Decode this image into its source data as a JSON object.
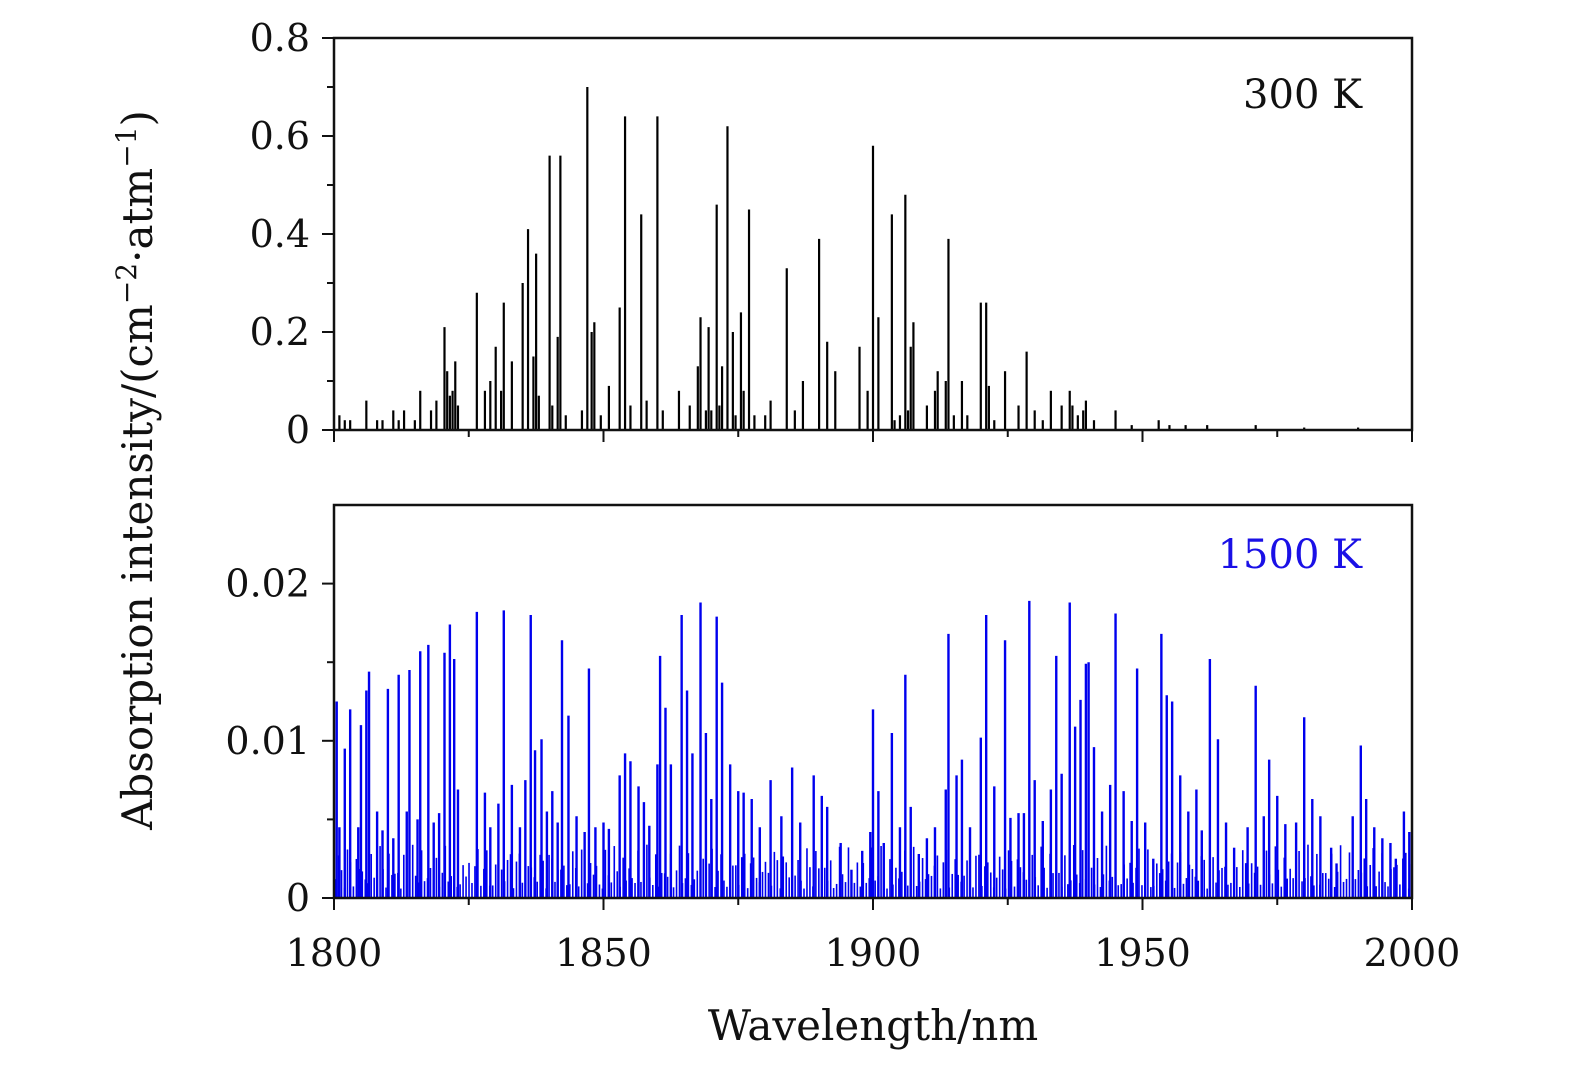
{
  "figure": {
    "ylabel_text": "Absorption intensity/(cm",
    "ylabel_sup1": "−2",
    "ylabel_mid": "·atm",
    "ylabel_sup2": "−1",
    "ylabel_end": ")",
    "xlabel": "Wavelength/nm"
  },
  "chart_data": [
    {
      "type": "bar",
      "label": "300 K",
      "label_color": "#111111",
      "color": "#000000",
      "xlim": [
        1800,
        2000
      ],
      "ylim": [
        0,
        0.8
      ],
      "xticks": [
        "1800",
        "1850",
        "1900",
        "1950",
        "2000"
      ],
      "yticks": [
        "0",
        "0.2",
        "0.4",
        "0.6",
        "0.8"
      ],
      "ytick_values": [
        0,
        0.2,
        0.4,
        0.6,
        0.8
      ],
      "lines": [
        {
          "x": 1801,
          "y": 0.03
        },
        {
          "x": 1802,
          "y": 0.02
        },
        {
          "x": 1803,
          "y": 0.02
        },
        {
          "x": 1806,
          "y": 0.06
        },
        {
          "x": 1808,
          "y": 0.02
        },
        {
          "x": 1809,
          "y": 0.02
        },
        {
          "x": 1811,
          "y": 0.04
        },
        {
          "x": 1812,
          "y": 0.02
        },
        {
          "x": 1813,
          "y": 0.04
        },
        {
          "x": 1815,
          "y": 0.02
        },
        {
          "x": 1816,
          "y": 0.08
        },
        {
          "x": 1818,
          "y": 0.04
        },
        {
          "x": 1819,
          "y": 0.06
        },
        {
          "x": 1820.5,
          "y": 0.21
        },
        {
          "x": 1821,
          "y": 0.12
        },
        {
          "x": 1821.5,
          "y": 0.07
        },
        {
          "x": 1822,
          "y": 0.08
        },
        {
          "x": 1822.5,
          "y": 0.14
        },
        {
          "x": 1823,
          "y": 0.05
        },
        {
          "x": 1826.5,
          "y": 0.28
        },
        {
          "x": 1828,
          "y": 0.08
        },
        {
          "x": 1829,
          "y": 0.1
        },
        {
          "x": 1830,
          "y": 0.17
        },
        {
          "x": 1831,
          "y": 0.08
        },
        {
          "x": 1831.5,
          "y": 0.26
        },
        {
          "x": 1833,
          "y": 0.14
        },
        {
          "x": 1835,
          "y": 0.3
        },
        {
          "x": 1836,
          "y": 0.41
        },
        {
          "x": 1837,
          "y": 0.15
        },
        {
          "x": 1837.5,
          "y": 0.36
        },
        {
          "x": 1838,
          "y": 0.07
        },
        {
          "x": 1840,
          "y": 0.56
        },
        {
          "x": 1840.5,
          "y": 0.05
        },
        {
          "x": 1841.5,
          "y": 0.19
        },
        {
          "x": 1842,
          "y": 0.56
        },
        {
          "x": 1843,
          "y": 0.03
        },
        {
          "x": 1846,
          "y": 0.04
        },
        {
          "x": 1847,
          "y": 0.7
        },
        {
          "x": 1847.8,
          "y": 0.2
        },
        {
          "x": 1848.3,
          "y": 0.22
        },
        {
          "x": 1849.5,
          "y": 0.03
        },
        {
          "x": 1851,
          "y": 0.09
        },
        {
          "x": 1853,
          "y": 0.25
        },
        {
          "x": 1854,
          "y": 0.64
        },
        {
          "x": 1855,
          "y": 0.05
        },
        {
          "x": 1857,
          "y": 0.44
        },
        {
          "x": 1858,
          "y": 0.06
        },
        {
          "x": 1860,
          "y": 0.64
        },
        {
          "x": 1861,
          "y": 0.04
        },
        {
          "x": 1864,
          "y": 0.08
        },
        {
          "x": 1866,
          "y": 0.05
        },
        {
          "x": 1867.5,
          "y": 0.13
        },
        {
          "x": 1868,
          "y": 0.23
        },
        {
          "x": 1869,
          "y": 0.04
        },
        {
          "x": 1869.5,
          "y": 0.21
        },
        {
          "x": 1870,
          "y": 0.04
        },
        {
          "x": 1871,
          "y": 0.46
        },
        {
          "x": 1871.5,
          "y": 0.05
        },
        {
          "x": 1872,
          "y": 0.13
        },
        {
          "x": 1873,
          "y": 0.62
        },
        {
          "x": 1874,
          "y": 0.2
        },
        {
          "x": 1874.5,
          "y": 0.03
        },
        {
          "x": 1875.5,
          "y": 0.24
        },
        {
          "x": 1876,
          "y": 0.08
        },
        {
          "x": 1877,
          "y": 0.45
        },
        {
          "x": 1878,
          "y": 0.03
        },
        {
          "x": 1880,
          "y": 0.03
        },
        {
          "x": 1881,
          "y": 0.06
        },
        {
          "x": 1884,
          "y": 0.33
        },
        {
          "x": 1885.5,
          "y": 0.04
        },
        {
          "x": 1887,
          "y": 0.1
        },
        {
          "x": 1890,
          "y": 0.39
        },
        {
          "x": 1891.5,
          "y": 0.18
        },
        {
          "x": 1893,
          "y": 0.12
        },
        {
          "x": 1897.5,
          "y": 0.17
        },
        {
          "x": 1899,
          "y": 0.08
        },
        {
          "x": 1900,
          "y": 0.58
        },
        {
          "x": 1901,
          "y": 0.23
        },
        {
          "x": 1903.5,
          "y": 0.44
        },
        {
          "x": 1904,
          "y": 0.02
        },
        {
          "x": 1905,
          "y": 0.03
        },
        {
          "x": 1906,
          "y": 0.48
        },
        {
          "x": 1906.5,
          "y": 0.04
        },
        {
          "x": 1907,
          "y": 0.17
        },
        {
          "x": 1907.5,
          "y": 0.22
        },
        {
          "x": 1910,
          "y": 0.05
        },
        {
          "x": 1911.5,
          "y": 0.08
        },
        {
          "x": 1912,
          "y": 0.12
        },
        {
          "x": 1913.5,
          "y": 0.1
        },
        {
          "x": 1914,
          "y": 0.39
        },
        {
          "x": 1915,
          "y": 0.03
        },
        {
          "x": 1916.5,
          "y": 0.1
        },
        {
          "x": 1917.5,
          "y": 0.03
        },
        {
          "x": 1920,
          "y": 0.26
        },
        {
          "x": 1921,
          "y": 0.26
        },
        {
          "x": 1921.5,
          "y": 0.09
        },
        {
          "x": 1922.5,
          "y": 0.02
        },
        {
          "x": 1924.5,
          "y": 0.12
        },
        {
          "x": 1927,
          "y": 0.05
        },
        {
          "x": 1928.5,
          "y": 0.16
        },
        {
          "x": 1930,
          "y": 0.04
        },
        {
          "x": 1931.5,
          "y": 0.02
        },
        {
          "x": 1933,
          "y": 0.08
        },
        {
          "x": 1935,
          "y": 0.05
        },
        {
          "x": 1936.5,
          "y": 0.08
        },
        {
          "x": 1937,
          "y": 0.05
        },
        {
          "x": 1938,
          "y": 0.03
        },
        {
          "x": 1939,
          "y": 0.04
        },
        {
          "x": 1939.5,
          "y": 0.06
        },
        {
          "x": 1941,
          "y": 0.02
        },
        {
          "x": 1945,
          "y": 0.04
        },
        {
          "x": 1948,
          "y": 0.01
        },
        {
          "x": 1953,
          "y": 0.02
        },
        {
          "x": 1955,
          "y": 0.01
        },
        {
          "x": 1958,
          "y": 0.01
        },
        {
          "x": 1962,
          "y": 0.01
        },
        {
          "x": 1971,
          "y": 0.01
        },
        {
          "x": 1980,
          "y": 0.005
        },
        {
          "x": 1990,
          "y": 0.005
        }
      ]
    },
    {
      "type": "bar",
      "label": "1500 K",
      "label_color": "#1a10e6",
      "color": "#0000ee",
      "xlim": [
        1800,
        2000
      ],
      "ylim": [
        0,
        0.025
      ],
      "xticks": [
        "1800",
        "1850",
        "1900",
        "1950",
        "2000"
      ],
      "yticks": [
        "0",
        "0.01",
        "0.02"
      ],
      "ytick_values": [
        0,
        0.01,
        0.02
      ],
      "xlabel": "Wavelength/nm",
      "lines": [
        {
          "x": 1800.5,
          "y": 0.0125
        },
        {
          "x": 1801,
          "y": 0.0045
        },
        {
          "x": 1802,
          "y": 0.0095
        },
        {
          "x": 1803,
          "y": 0.012
        },
        {
          "x": 1804.5,
          "y": 0.0045
        },
        {
          "x": 1805,
          "y": 0.011
        },
        {
          "x": 1806,
          "y": 0.0132
        },
        {
          "x": 1806.5,
          "y": 0.0144
        },
        {
          "x": 1808,
          "y": 0.0055
        },
        {
          "x": 1809,
          "y": 0.0043
        },
        {
          "x": 1810,
          "y": 0.0133
        },
        {
          "x": 1811,
          "y": 0.0038
        },
        {
          "x": 1812,
          "y": 0.0142
        },
        {
          "x": 1813.5,
          "y": 0.0055
        },
        {
          "x": 1814,
          "y": 0.0145
        },
        {
          "x": 1815.5,
          "y": 0.005
        },
        {
          "x": 1816,
          "y": 0.0157
        },
        {
          "x": 1817.5,
          "y": 0.0161
        },
        {
          "x": 1818.5,
          "y": 0.0048
        },
        {
          "x": 1819.5,
          "y": 0.0054
        },
        {
          "x": 1820.5,
          "y": 0.0156
        },
        {
          "x": 1821.5,
          "y": 0.0174
        },
        {
          "x": 1822.3,
          "y": 0.0152
        },
        {
          "x": 1823,
          "y": 0.0069
        },
        {
          "x": 1826.5,
          "y": 0.0182
        },
        {
          "x": 1828,
          "y": 0.0067
        },
        {
          "x": 1829,
          "y": 0.0045
        },
        {
          "x": 1830.5,
          "y": 0.006
        },
        {
          "x": 1831.5,
          "y": 0.0183
        },
        {
          "x": 1833,
          "y": 0.0072
        },
        {
          "x": 1834.5,
          "y": 0.0045
        },
        {
          "x": 1835.5,
          "y": 0.0075
        },
        {
          "x": 1836.5,
          "y": 0.018
        },
        {
          "x": 1837.3,
          "y": 0.0094
        },
        {
          "x": 1838.5,
          "y": 0.0101
        },
        {
          "x": 1839.5,
          "y": 0.0055
        },
        {
          "x": 1840.5,
          "y": 0.0068
        },
        {
          "x": 1841.5,
          "y": 0.0048
        },
        {
          "x": 1842.3,
          "y": 0.0164
        },
        {
          "x": 1843.5,
          "y": 0.0116
        },
        {
          "x": 1845,
          "y": 0.0052
        },
        {
          "x": 1846.5,
          "y": 0.0042
        },
        {
          "x": 1847.3,
          "y": 0.0146
        },
        {
          "x": 1848.5,
          "y": 0.0045
        },
        {
          "x": 1850,
          "y": 0.0048
        },
        {
          "x": 1851,
          "y": 0.0044
        },
        {
          "x": 1853,
          "y": 0.0078
        },
        {
          "x": 1854,
          "y": 0.0092
        },
        {
          "x": 1855,
          "y": 0.0087
        },
        {
          "x": 1856.5,
          "y": 0.0071
        },
        {
          "x": 1857.5,
          "y": 0.0061
        },
        {
          "x": 1858.5,
          "y": 0.0046
        },
        {
          "x": 1860,
          "y": 0.0085
        },
        {
          "x": 1860.5,
          "y": 0.0154
        },
        {
          "x": 1861.5,
          "y": 0.0121
        },
        {
          "x": 1862.5,
          "y": 0.0085
        },
        {
          "x": 1864.5,
          "y": 0.018
        },
        {
          "x": 1865.5,
          "y": 0.0132
        },
        {
          "x": 1866.5,
          "y": 0.0092
        },
        {
          "x": 1868,
          "y": 0.0188
        },
        {
          "x": 1869,
          "y": 0.0105
        },
        {
          "x": 1870,
          "y": 0.0063
        },
        {
          "x": 1871,
          "y": 0.0179
        },
        {
          "x": 1872,
          "y": 0.0137
        },
        {
          "x": 1873.5,
          "y": 0.0085
        },
        {
          "x": 1875,
          "y": 0.0068
        },
        {
          "x": 1876,
          "y": 0.0067
        },
        {
          "x": 1877.5,
          "y": 0.0063
        },
        {
          "x": 1879,
          "y": 0.0045
        },
        {
          "x": 1881,
          "y": 0.0075
        },
        {
          "x": 1883,
          "y": 0.0052
        },
        {
          "x": 1885,
          "y": 0.0083
        },
        {
          "x": 1886.5,
          "y": 0.0048
        },
        {
          "x": 1889,
          "y": 0.0078
        },
        {
          "x": 1890.5,
          "y": 0.0065
        },
        {
          "x": 1891.5,
          "y": 0.0058
        },
        {
          "x": 1894,
          "y": 0.0035
        },
        {
          "x": 1896,
          "y": 0.0018
        },
        {
          "x": 1898,
          "y": 0.003
        },
        {
          "x": 1899.5,
          "y": 0.0042
        },
        {
          "x": 1900,
          "y": 0.012
        },
        {
          "x": 1901,
          "y": 0.0068
        },
        {
          "x": 1902,
          "y": 0.0035
        },
        {
          "x": 1903.5,
          "y": 0.0105
        },
        {
          "x": 1905,
          "y": 0.0045
        },
        {
          "x": 1906,
          "y": 0.0142
        },
        {
          "x": 1907,
          "y": 0.0058
        },
        {
          "x": 1908.5,
          "y": 0.0028
        },
        {
          "x": 1910,
          "y": 0.0038
        },
        {
          "x": 1911.5,
          "y": 0.0045
        },
        {
          "x": 1913.5,
          "y": 0.0069
        },
        {
          "x": 1914,
          "y": 0.0168
        },
        {
          "x": 1915.5,
          "y": 0.0078
        },
        {
          "x": 1916.5,
          "y": 0.0088
        },
        {
          "x": 1918,
          "y": 0.0045
        },
        {
          "x": 1920,
          "y": 0.0102
        },
        {
          "x": 1921,
          "y": 0.018
        },
        {
          "x": 1922.5,
          "y": 0.0071
        },
        {
          "x": 1924.5,
          "y": 0.0164
        },
        {
          "x": 1925.5,
          "y": 0.0051
        },
        {
          "x": 1927,
          "y": 0.0054
        },
        {
          "x": 1928,
          "y": 0.0054
        },
        {
          "x": 1929,
          "y": 0.0189
        },
        {
          "x": 1930,
          "y": 0.0075
        },
        {
          "x": 1931.5,
          "y": 0.0049
        },
        {
          "x": 1933,
          "y": 0.0069
        },
        {
          "x": 1934,
          "y": 0.0154
        },
        {
          "x": 1935,
          "y": 0.0079
        },
        {
          "x": 1936.5,
          "y": 0.0188
        },
        {
          "x": 1937.5,
          "y": 0.0109
        },
        {
          "x": 1938.5,
          "y": 0.0126
        },
        {
          "x": 1939.5,
          "y": 0.0149
        },
        {
          "x": 1940,
          "y": 0.015
        },
        {
          "x": 1941,
          "y": 0.0096
        },
        {
          "x": 1942.5,
          "y": 0.0055
        },
        {
          "x": 1944,
          "y": 0.0072
        },
        {
          "x": 1945,
          "y": 0.0181
        },
        {
          "x": 1946.5,
          "y": 0.0068
        },
        {
          "x": 1948,
          "y": 0.0049
        },
        {
          "x": 1949,
          "y": 0.0146
        },
        {
          "x": 1950.5,
          "y": 0.0048
        },
        {
          "x": 1952,
          "y": 0.0025
        },
        {
          "x": 1953.5,
          "y": 0.0168
        },
        {
          "x": 1954.5,
          "y": 0.0129
        },
        {
          "x": 1955.5,
          "y": 0.0125
        },
        {
          "x": 1957,
          "y": 0.0078
        },
        {
          "x": 1958.5,
          "y": 0.0055
        },
        {
          "x": 1960,
          "y": 0.0069
        },
        {
          "x": 1961,
          "y": 0.0043
        },
        {
          "x": 1962.5,
          "y": 0.0152
        },
        {
          "x": 1964,
          "y": 0.0101
        },
        {
          "x": 1965.5,
          "y": 0.0048
        },
        {
          "x": 1967,
          "y": 0.0032
        },
        {
          "x": 1969.5,
          "y": 0.0045
        },
        {
          "x": 1971,
          "y": 0.0135
        },
        {
          "x": 1972.5,
          "y": 0.0052
        },
        {
          "x": 1973.5,
          "y": 0.0088
        },
        {
          "x": 1975,
          "y": 0.0065
        },
        {
          "x": 1976.5,
          "y": 0.0047
        },
        {
          "x": 1978.5,
          "y": 0.0048
        },
        {
          "x": 1980,
          "y": 0.0115
        },
        {
          "x": 1981.5,
          "y": 0.0063
        },
        {
          "x": 1983,
          "y": 0.0052
        },
        {
          "x": 1985,
          "y": 0.0032
        },
        {
          "x": 1986,
          "y": 0.0022
        },
        {
          "x": 1989,
          "y": 0.0052
        },
        {
          "x": 1990.5,
          "y": 0.0097
        },
        {
          "x": 1991.5,
          "y": 0.0063
        },
        {
          "x": 1993,
          "y": 0.0045
        },
        {
          "x": 1994.5,
          "y": 0.0038
        },
        {
          "x": 1996,
          "y": 0.0035
        },
        {
          "x": 1997,
          "y": 0.0025
        },
        {
          "x": 1998.5,
          "y": 0.0055
        },
        {
          "x": 1999.5,
          "y": 0.0042
        }
      ]
    }
  ]
}
